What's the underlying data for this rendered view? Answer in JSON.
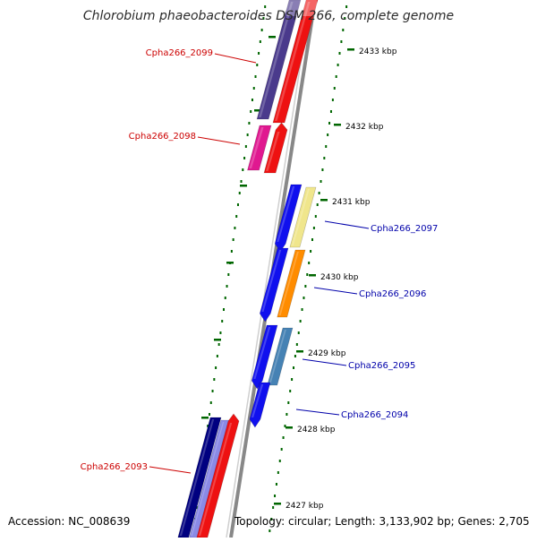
{
  "title": "Chlorobium phaeobacteroides DSM 266, complete genome",
  "footer": {
    "accession": "Accession: NC_008639",
    "summary": "Topology: circular; Length: 3,133,902 bp; Genes: 2,705"
  },
  "colors": {
    "forward_label": "#cc0000",
    "reverse_label": "#0000aa",
    "tick": "#006600",
    "backbone": "#888888"
  },
  "scale_ticks": [
    "2433 kbp",
    "2432 kbp",
    "2431 kbp",
    "2430 kbp",
    "2429 kbp",
    "2428 kbp",
    "2427 kbp"
  ],
  "genes": [
    {
      "id": "Cpha266_2099",
      "strand": "forward",
      "cds_color": "#4a3a8c",
      "gene_color": "#ee1111"
    },
    {
      "id": "Cpha266_2098",
      "strand": "forward",
      "cds_color": "#e01890",
      "gene_color": "#ee1111"
    },
    {
      "id": "Cpha266_2097",
      "strand": "reverse",
      "cds_color": "#f0e68c",
      "gene_color": "#1010ee"
    },
    {
      "id": "Cpha266_2096",
      "strand": "reverse",
      "cds_color": "#ff8c00",
      "gene_color": "#1010ee"
    },
    {
      "id": "Cpha266_2095",
      "strand": "reverse",
      "cds_color": "#4682b4",
      "gene_color": "#1010ee"
    },
    {
      "id": "Cpha266_2094",
      "strand": "reverse",
      "cds_color": "",
      "gene_color": "#1010ee"
    },
    {
      "id": "Cpha266_2093",
      "strand": "forward",
      "cds_color": "#000080",
      "gene_color": "#ee1111"
    }
  ]
}
